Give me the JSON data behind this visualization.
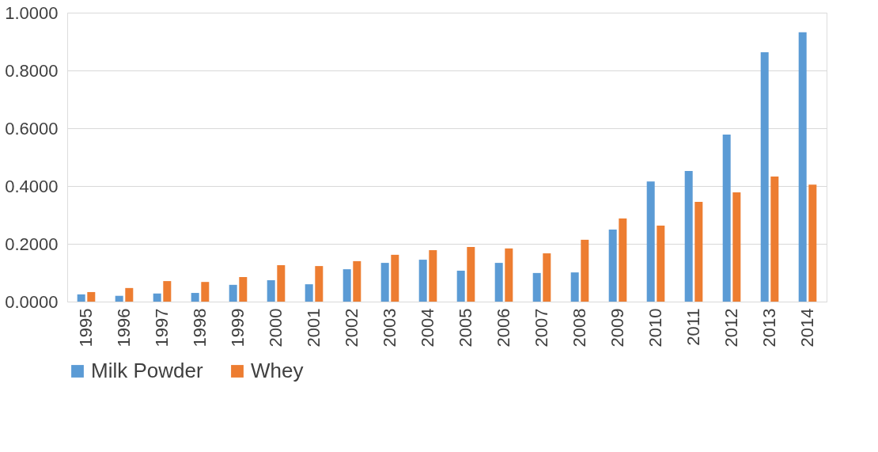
{
  "chart_data": {
    "type": "bar",
    "categories": [
      "1995",
      "1996",
      "1997",
      "1998",
      "1999",
      "2000",
      "2001",
      "2002",
      "2003",
      "2004",
      "2005",
      "2006",
      "2007",
      "2008",
      "2009",
      "2010",
      "2011",
      "2012",
      "2013",
      "2014"
    ],
    "series": [
      {
        "name": "Milk Powder",
        "color": "#5b9bd5",
        "values": [
          0.025,
          0.02,
          0.028,
          0.03,
          0.058,
          0.074,
          0.06,
          0.112,
          0.134,
          0.145,
          0.107,
          0.134,
          0.099,
          0.101,
          0.249,
          0.416,
          0.452,
          0.578,
          0.863,
          0.932
        ]
      },
      {
        "name": "Whey",
        "color": "#ed7d31",
        "values": [
          0.033,
          0.047,
          0.071,
          0.068,
          0.085,
          0.126,
          0.123,
          0.14,
          0.162,
          0.178,
          0.189,
          0.184,
          0.167,
          0.214,
          0.288,
          0.263,
          0.345,
          0.378,
          0.433,
          0.405
        ]
      }
    ],
    "ylim": [
      0,
      1
    ],
    "yticks": [
      {
        "value": 0,
        "label": "0.0000"
      },
      {
        "value": 0.2,
        "label": "0.2000"
      },
      {
        "value": 0.4,
        "label": "0.4000"
      },
      {
        "value": 0.6,
        "label": "0.6000"
      },
      {
        "value": 0.8,
        "label": "0.8000"
      },
      {
        "value": 1,
        "label": "1.0000"
      }
    ],
    "grid": "y",
    "legend": "bottom"
  }
}
